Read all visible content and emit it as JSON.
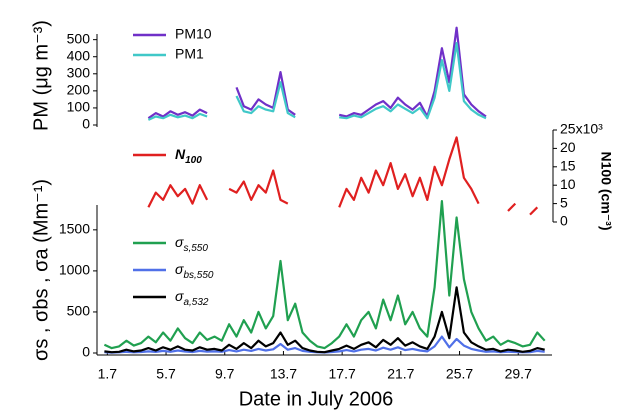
{
  "chart_data": [
    {
      "type": "line",
      "ylabel": "PM (μg m⁻³)",
      "x": [
        1.5,
        2,
        2.5,
        3,
        3.5,
        4,
        4.5,
        5,
        5.5,
        6,
        6.5,
        7,
        7.5,
        8,
        8.5,
        9,
        9.5,
        10,
        10.5,
        11,
        11.5,
        12,
        12.5,
        13,
        13.5,
        14,
        14.5,
        15,
        15.5,
        16,
        16.5,
        17,
        17.5,
        18,
        18.5,
        19,
        19.5,
        20,
        20.5,
        21,
        21.5,
        22,
        22.5,
        23,
        23.5,
        24,
        24.5,
        25,
        25.5,
        26,
        26.5,
        27,
        27.5,
        28,
        28.5,
        29,
        29.5,
        30,
        30.5,
        31,
        31.5
      ],
      "xlim": [
        1.2,
        32.0
      ],
      "ylim": [
        0,
        580
      ],
      "yticks": [
        0,
        100,
        200,
        300,
        400,
        500
      ],
      "series": [
        {
          "name": "PM10",
          "color": "#7030c8",
          "values": [
            null,
            null,
            null,
            null,
            null,
            null,
            40,
            70,
            50,
            80,
            60,
            75,
            55,
            90,
            70,
            null,
            null,
            null,
            220,
            110,
            90,
            150,
            120,
            100,
            310,
            90,
            60,
            null,
            null,
            null,
            null,
            null,
            60,
            50,
            70,
            60,
            90,
            120,
            140,
            100,
            160,
            120,
            90,
            130,
            50,
            200,
            450,
            250,
            570,
            180,
            120,
            80,
            50,
            null,
            null,
            null,
            null,
            null,
            null,
            null,
            null
          ]
        },
        {
          "name": "PM1",
          "color": "#40c8c8",
          "values": [
            null,
            null,
            null,
            null,
            null,
            null,
            30,
            50,
            40,
            60,
            45,
            55,
            40,
            65,
            50,
            null,
            null,
            null,
            170,
            80,
            70,
            110,
            90,
            80,
            250,
            70,
            45,
            null,
            null,
            null,
            null,
            null,
            45,
            40,
            55,
            45,
            70,
            95,
            110,
            80,
            120,
            95,
            70,
            100,
            40,
            160,
            380,
            200,
            480,
            140,
            90,
            60,
            40,
            null,
            null,
            null,
            null,
            null,
            null,
            null,
            null
          ]
        }
      ]
    },
    {
      "type": "line",
      "y2label": "N100 (cm⁻³)",
      "x": [
        1.5,
        2,
        2.5,
        3,
        3.5,
        4,
        4.5,
        5,
        5.5,
        6,
        6.5,
        7,
        7.5,
        8,
        8.5,
        9,
        9.5,
        10,
        10.5,
        11,
        11.5,
        12,
        12.5,
        13,
        13.5,
        14,
        14.5,
        15,
        15.5,
        16,
        16.5,
        17,
        17.5,
        18,
        18.5,
        19,
        19.5,
        20,
        20.5,
        21,
        21.5,
        22,
        22.5,
        23,
        23.5,
        24,
        24.5,
        25,
        25.5,
        26,
        26.5,
        27,
        27.5,
        28,
        28.5,
        29,
        29.5,
        30,
        30.5,
        31,
        31.5
      ],
      "xlim": [
        1.2,
        32.0
      ],
      "y2lim": [
        0,
        25
      ],
      "y2ticks": [
        0,
        5,
        10,
        15,
        20,
        {
          "value": 25,
          "label": "25x10³"
        }
      ],
      "series": [
        {
          "name": "N100",
          "color": "#e02020",
          "axis": "y2",
          "values": [
            null,
            null,
            null,
            null,
            null,
            null,
            4,
            8,
            6,
            10,
            7,
            9,
            5,
            10,
            6,
            null,
            null,
            9,
            8,
            11,
            6,
            10,
            8,
            14,
            6,
            5,
            null,
            null,
            null,
            null,
            null,
            null,
            4,
            9,
            6,
            12,
            8,
            14,
            10,
            16,
            9,
            13,
            7,
            12,
            6,
            15,
            10,
            17,
            23,
            12,
            9,
            5,
            null,
            null,
            null,
            3,
            5,
            null,
            2,
            4,
            null
          ]
        }
      ]
    },
    {
      "type": "line",
      "ylabel": "σs , σbs , σa (Mm⁻¹)",
      "xlabel": "Date in July 2006",
      "x": [
        1.5,
        2,
        2.5,
        3,
        3.5,
        4,
        4.5,
        5,
        5.5,
        6,
        6.5,
        7,
        7.5,
        8,
        8.5,
        9,
        9.5,
        10,
        10.5,
        11,
        11.5,
        12,
        12.5,
        13,
        13.5,
        14,
        14.5,
        15,
        15.5,
        16,
        16.5,
        17,
        17.5,
        18,
        18.5,
        19,
        19.5,
        20,
        20.5,
        21,
        21.5,
        22,
        22.5,
        23,
        23.5,
        24,
        24.5,
        25,
        25.5,
        26,
        26.5,
        27,
        27.5,
        28,
        28.5,
        29,
        29.5,
        30,
        30.5,
        31,
        31.5
      ],
      "xlim": [
        1.2,
        32.0
      ],
      "xticks": [
        1.7,
        5.7,
        9.7,
        13.7,
        17.7,
        21.7,
        25.7,
        29.7
      ],
      "ylim": [
        0,
        1900
      ],
      "yticks": [
        0,
        500,
        1000,
        1500
      ],
      "series": [
        {
          "name": "σs,550",
          "color": "#20a050",
          "values": [
            100,
            60,
            80,
            150,
            90,
            120,
            200,
            130,
            250,
            150,
            300,
            180,
            120,
            250,
            160,
            200,
            150,
            350,
            200,
            400,
            250,
            500,
            300,
            450,
            1120,
            400,
            600,
            250,
            150,
            80,
            60,
            120,
            200,
            350,
            200,
            400,
            500,
            300,
            650,
            400,
            700,
            350,
            500,
            300,
            200,
            800,
            1850,
            700,
            1650,
            900,
            500,
            300,
            150,
            200,
            100,
            150,
            120,
            80,
            100,
            250,
            150
          ]
        },
        {
          "name": "σbs,550",
          "color": "#5070e8",
          "values": [
            10,
            5,
            8,
            15,
            9,
            12,
            20,
            13,
            25,
            15,
            30,
            18,
            12,
            25,
            16,
            20,
            15,
            35,
            20,
            40,
            25,
            50,
            30,
            45,
            110,
            40,
            60,
            25,
            15,
            8,
            6,
            12,
            20,
            35,
            20,
            40,
            50,
            30,
            65,
            40,
            70,
            35,
            50,
            30,
            20,
            80,
            200,
            70,
            170,
            90,
            50,
            30,
            15,
            20,
            10,
            15,
            12,
            8,
            10,
            25,
            15
          ]
        },
        {
          "name": "σa,532",
          "color": "#000000",
          "values": [
            20,
            10,
            15,
            40,
            20,
            30,
            60,
            30,
            70,
            40,
            80,
            40,
            30,
            70,
            40,
            50,
            30,
            100,
            50,
            120,
            60,
            150,
            80,
            120,
            250,
            100,
            150,
            60,
            30,
            15,
            10,
            30,
            50,
            90,
            50,
            100,
            130,
            70,
            160,
            100,
            180,
            90,
            130,
            80,
            50,
            200,
            500,
            180,
            800,
            250,
            130,
            80,
            40,
            50,
            20,
            40,
            30,
            15,
            25,
            60,
            40
          ]
        }
      ]
    }
  ]
}
